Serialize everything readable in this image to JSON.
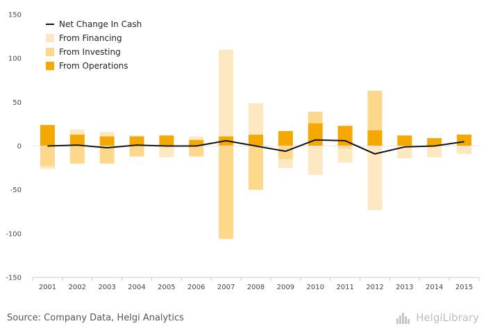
{
  "chart_data": {
    "type": "bar",
    "categories": [
      "2001",
      "2002",
      "2003",
      "2004",
      "2005",
      "2006",
      "2007",
      "2008",
      "2009",
      "2010",
      "2011",
      "2012",
      "2013",
      "2014",
      "2015"
    ],
    "series": [
      {
        "name": "From Operations",
        "kind": "bar",
        "color": "#f4a800",
        "values": [
          24,
          13,
          11,
          11,
          12,
          7,
          11,
          13,
          17,
          26,
          23,
          18,
          12,
          9,
          13
        ]
      },
      {
        "name": "From Investing",
        "kind": "bar",
        "color": "#fdd88a",
        "values": [
          -23,
          -20,
          -20,
          -12,
          0,
          -12,
          -106,
          -50,
          -15,
          13,
          -3,
          45,
          0,
          0,
          0
        ]
      },
      {
        "name": "From Financing",
        "kind": "bar",
        "color": "#fde8c2",
        "values": [
          -3,
          6,
          5,
          1,
          -13,
          4,
          99,
          36,
          -10,
          -33,
          -16,
          -73,
          -14,
          -13,
          -9
        ]
      },
      {
        "name": "Net Change In Cash",
        "kind": "line",
        "color": "#111111",
        "values": [
          0,
          1,
          -2,
          1,
          0,
          0,
          6,
          0,
          -6,
          7,
          6,
          -9,
          -1,
          0,
          5
        ]
      }
    ],
    "yticks": [
      150,
      100,
      50,
      0,
      -50,
      -100,
      -150
    ],
    "ylim": [
      -150,
      150
    ],
    "title": "",
    "xlabel": "",
    "ylabel": "",
    "grid": false,
    "legend_position": "top-left",
    "legend_order": [
      "Net Change In Cash",
      "From Financing",
      "From Investing",
      "From Operations"
    ]
  },
  "footer": {
    "source": "Source: Company Data, Helgi Analytics",
    "brand": "HelgiLibrary"
  }
}
